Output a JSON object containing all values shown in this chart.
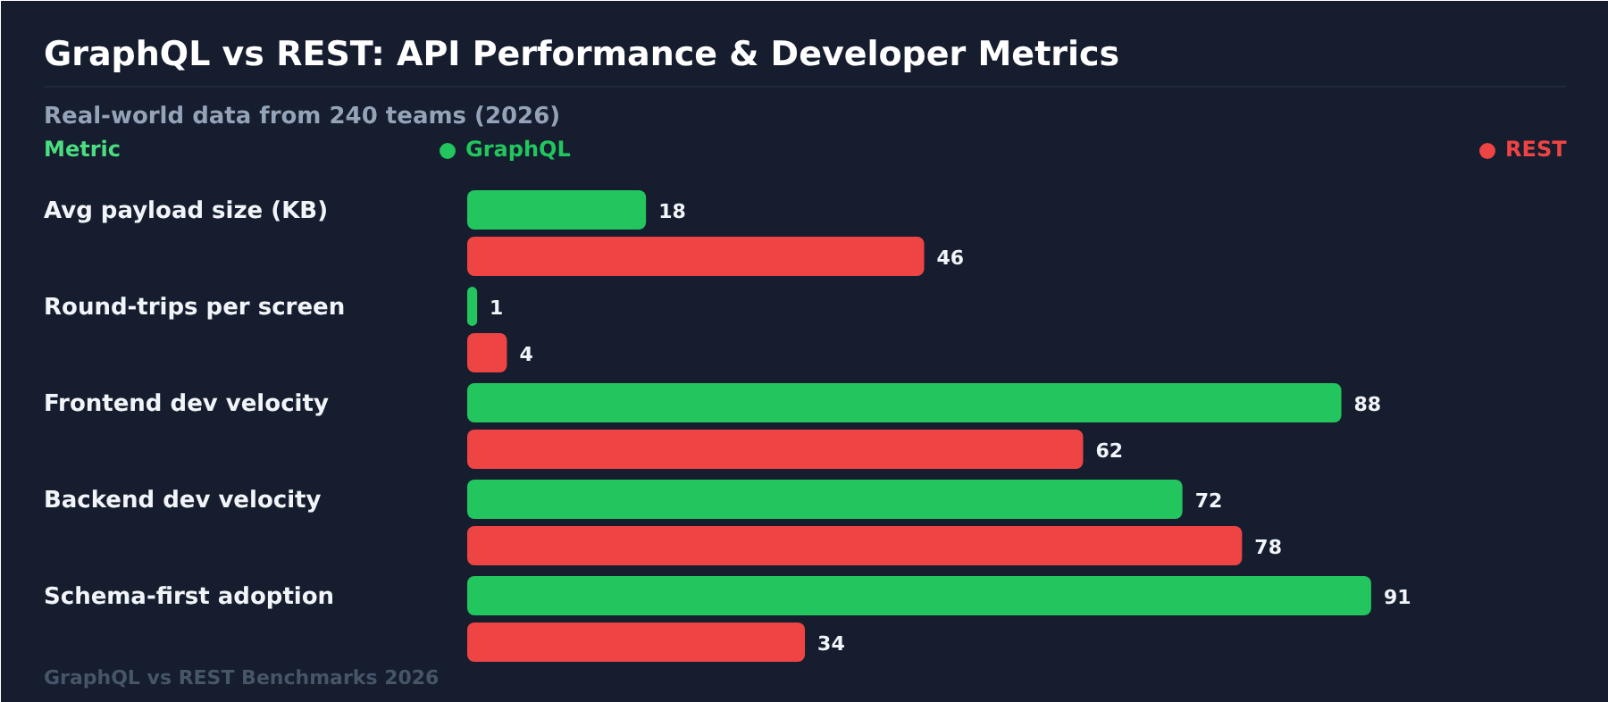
{
  "chart_data": {
    "type": "bar",
    "orientation": "horizontal",
    "title": "GraphQL vs REST: API Performance & Developer Metrics",
    "subtitle": "Real-world data from 240 teams (2026)",
    "categories": [
      "Avg payload size (KB)",
      "Round-trips per screen",
      "Frontend dev velocity",
      "Backend dev velocity",
      "Schema-first adoption"
    ],
    "series": [
      {
        "name": "GraphQL",
        "color": "#22c55e",
        "values": [
          18,
          1,
          88,
          72,
          91
        ]
      },
      {
        "name": "REST",
        "color": "#ef4444",
        "values": [
          46,
          4,
          62,
          78,
          34
        ]
      }
    ],
    "data_labels": true,
    "legend": "top",
    "grid": false,
    "tick_labels": false,
    "annotations": [
      "Metric",
      "GraphQL vs REST Benchmarks 2026"
    ]
  }
}
